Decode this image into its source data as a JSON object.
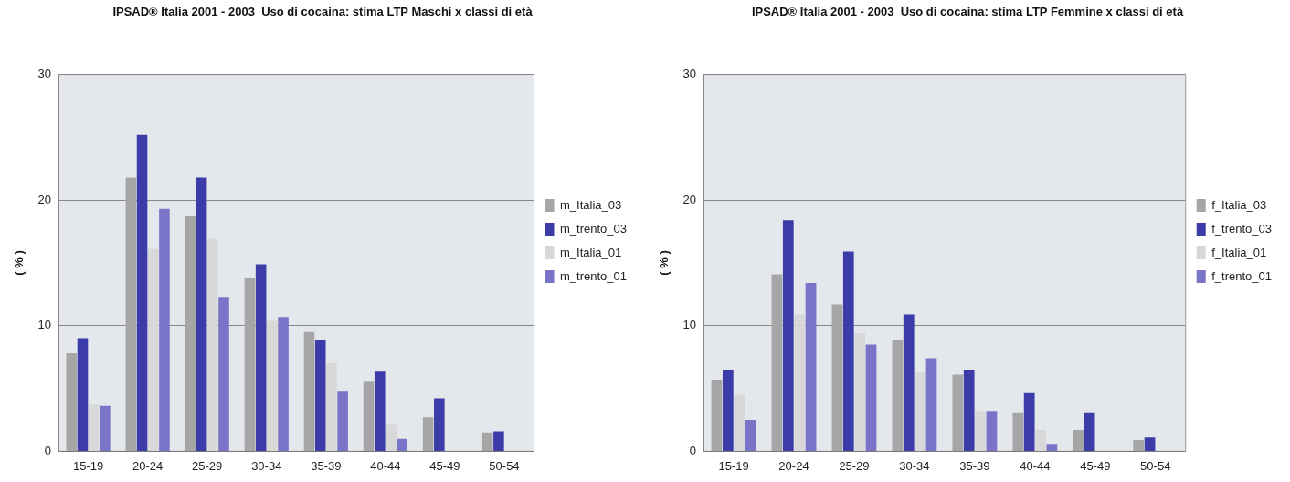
{
  "chart_data": [
    {
      "type": "bar",
      "title": "IPSAD® Italia 2001 - 2003  Uso di cocaina: stima LTP Maschi x classi di età",
      "ylabel": "( % )",
      "categories": [
        "15-19",
        "20-24",
        "25-29",
        "30-34",
        "35-39",
        "40-44",
        "45-49",
        "50-54"
      ],
      "series": [
        {
          "name": "m_Italia_03",
          "color": "#a6a6a6",
          "values": [
            7.8,
            21.8,
            18.7,
            13.8,
            9.5,
            5.6,
            2.7,
            1.5
          ]
        },
        {
          "name": "m_trento_03",
          "color": "#3c3ca8",
          "values": [
            9.0,
            25.2,
            21.8,
            14.9,
            8.9,
            6.4,
            4.2,
            1.6
          ]
        },
        {
          "name": "m_Italia_01",
          "color": "#d8d8d8",
          "values": [
            3.7,
            16.1,
            16.9,
            10.4,
            7.0,
            2.1,
            0,
            0
          ]
        },
        {
          "name": "m_trento_01",
          "color": "#7a74c8",
          "values": [
            3.6,
            19.3,
            12.3,
            10.7,
            4.8,
            1.0,
            0,
            0
          ]
        }
      ],
      "ylim": [
        0,
        30
      ],
      "yticks": [
        0,
        10,
        20,
        30
      ],
      "grid": "y",
      "legend": "right"
    },
    {
      "type": "bar",
      "title": "IPSAD® Italia 2001 - 2003  Uso di cocaina: stima LTP Femmine x classi di età",
      "ylabel": "( % )",
      "categories": [
        "15-19",
        "20-24",
        "25-29",
        "30-34",
        "35-39",
        "40-44",
        "45-49",
        "50-54"
      ],
      "series": [
        {
          "name": "f_Italia_03",
          "color": "#a6a6a6",
          "values": [
            5.7,
            14.1,
            11.7,
            8.9,
            6.1,
            3.1,
            1.7,
            0.9
          ]
        },
        {
          "name": "f_trento_03",
          "color": "#3c3ca8",
          "values": [
            6.5,
            18.4,
            15.9,
            10.9,
            6.5,
            4.7,
            3.1,
            1.1
          ]
        },
        {
          "name": "f_Italia_01",
          "color": "#d8d8d8",
          "values": [
            4.5,
            10.9,
            9.4,
            6.3,
            3.2,
            1.7,
            0,
            0
          ]
        },
        {
          "name": "f_trento_01",
          "color": "#7a74c8",
          "values": [
            2.5,
            13.4,
            8.5,
            7.4,
            3.2,
            0.6,
            0,
            0
          ]
        }
      ],
      "ylim": [
        0,
        30
      ],
      "yticks": [
        0,
        10,
        20,
        30
      ],
      "grid": "y",
      "legend": "right"
    }
  ]
}
